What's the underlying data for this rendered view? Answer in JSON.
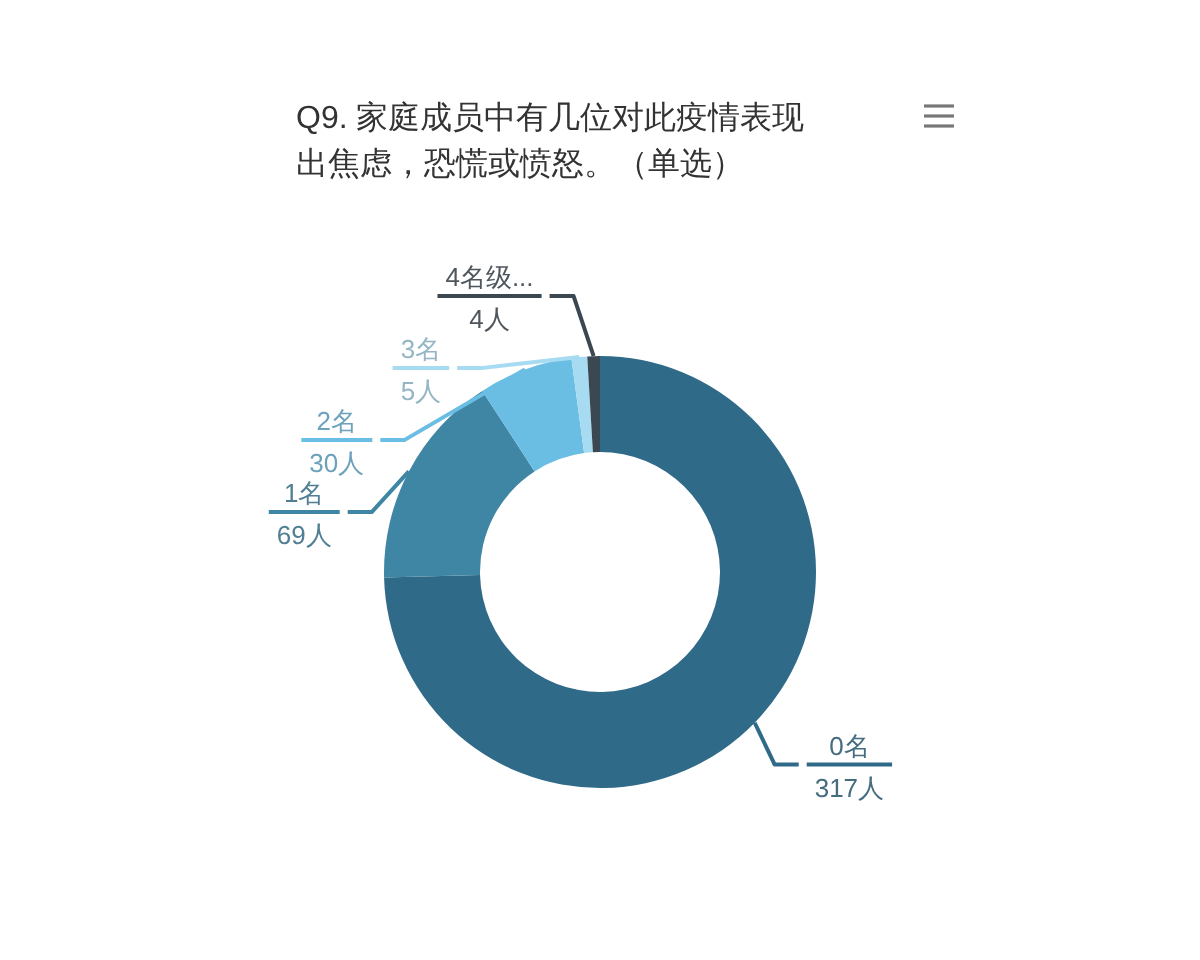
{
  "chart_data": {
    "type": "donut",
    "title": "Q9. 家庭成员中有几位对此疫情表现出焦虑，恐慌或愤怒。（单选）",
    "categories": [
      "0名",
      "1名",
      "2名",
      "3名",
      "4名级..."
    ],
    "values": [
      317,
      69,
      30,
      5,
      4
    ],
    "value_labels": [
      "317人",
      "69人",
      "30人",
      "5人",
      "4人"
    ],
    "colors": [
      "#2f6a88",
      "#3f86a5",
      "#6abde3",
      "#a7dbf1",
      "#3b4852"
    ]
  }
}
